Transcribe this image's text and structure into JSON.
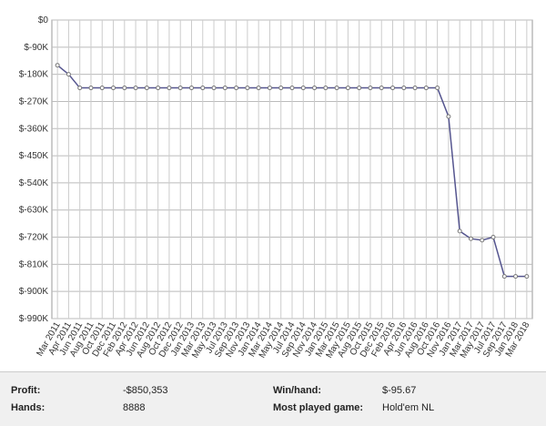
{
  "chart_data": {
    "type": "line",
    "categories": [
      "Mar 2011",
      "Apr 2011",
      "Jun 2011",
      "Aug 2011",
      "Oct 2011",
      "Dec 2011",
      "Feb 2012",
      "Apr 2012",
      "Jun 2012",
      "Aug 2012",
      "Oct 2012",
      "Dec 2012",
      "Jan 2013",
      "Mar 2013",
      "May 2013",
      "Jul 2013",
      "Sep 2013",
      "Nov 2013",
      "Jan 2014",
      "Mar 2014",
      "May 2014",
      "Jul 2014",
      "Sep 2014",
      "Nov 2014",
      "Jan 2015",
      "Mar 2015",
      "May 2015",
      "Aug 2015",
      "Oct 2015",
      "Dec 2015",
      "Feb 2016",
      "Apr 2016",
      "Jun 2016",
      "Aug 2016",
      "Oct 2016",
      "Nov 2016",
      "Jan 2017",
      "Mar 2017",
      "May 2017",
      "Jul 2017",
      "Sep 2017",
      "Jan 2018",
      "Mar 2018"
    ],
    "values": [
      -150000,
      -180000,
      -225000,
      -225000,
      -225000,
      -225000,
      -225000,
      -225000,
      -225000,
      -225000,
      -225000,
      -225000,
      -225000,
      -225000,
      -225000,
      -225000,
      -225000,
      -225000,
      -225000,
      -225000,
      -225000,
      -225000,
      -225000,
      -225000,
      -225000,
      -225000,
      -225000,
      -225000,
      -225000,
      -225000,
      -225000,
      -225000,
      -225000,
      -225000,
      -225000,
      -320000,
      -700000,
      -725000,
      -730000,
      -720000,
      -850000,
      -850000,
      -850000
    ],
    "color": "#55558f",
    "ylim": [
      -990000,
      0
    ],
    "yticks": [
      {
        "value": 0,
        "label": "$0"
      },
      {
        "value": -90000,
        "label": "$-90K"
      },
      {
        "value": -180000,
        "label": "$-180K"
      },
      {
        "value": -270000,
        "label": "$-270K"
      },
      {
        "value": -360000,
        "label": "$-360K"
      },
      {
        "value": -450000,
        "label": "$-450K"
      },
      {
        "value": -540000,
        "label": "$-540K"
      },
      {
        "value": -630000,
        "label": "$-630K"
      },
      {
        "value": -720000,
        "label": "$-720K"
      },
      {
        "value": -810000,
        "label": "$-810K"
      },
      {
        "value": -900000,
        "label": "$-900K"
      },
      {
        "value": -990000,
        "label": "$-990K"
      }
    ],
    "grid": true
  },
  "stats": {
    "profit_label": "Profit:",
    "profit": "-$850,353",
    "hands_label": "Hands:",
    "hands": "8888",
    "winhand_label": "Win/hand:",
    "winhand": "$-95.67",
    "game_label": "Most played game:",
    "game": "Hold'em NL"
  }
}
